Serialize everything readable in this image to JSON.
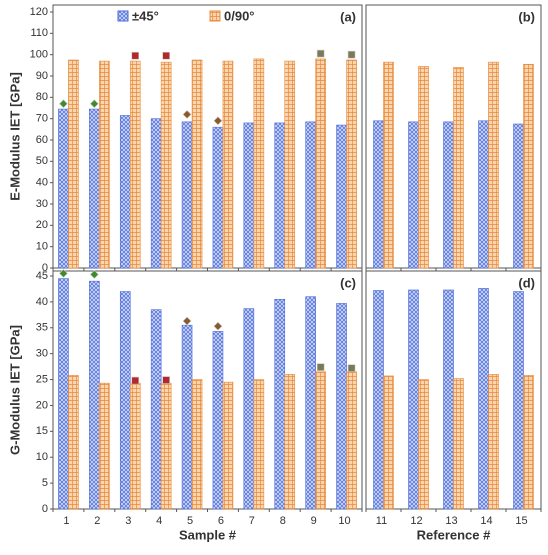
{
  "chart_data": [
    {
      "type": "bar",
      "title": "(a)",
      "ylabel": "E-Modulus IET [GPa]",
      "ylim": [
        0,
        120
      ],
      "yticks": [
        0,
        10,
        20,
        30,
        40,
        50,
        60,
        70,
        80,
        90,
        100,
        110,
        120
      ],
      "legend": "top",
      "series": [
        {
          "name": "±45°",
          "color": "#4a6ad8",
          "values": [
            74.5,
            74.5,
            71.5,
            70,
            68.5,
            66,
            68,
            68,
            68.5,
            67
          ]
        },
        {
          "name": "0/90°",
          "color": "#e8893a",
          "values": [
            97.5,
            97,
            97,
            96.5,
            97.5,
            97,
            98,
            97,
            98,
            97.5
          ]
        }
      ],
      "markers": [
        {
          "shape": "diamond",
          "values": [
            77,
            77,
            null,
            null,
            72,
            69,
            null,
            null,
            null,
            null
          ],
          "colors": [
            "#3f8a2e",
            "#3f8a2e",
            null,
            null,
            "#8a5a2a",
            "#8a5a2a",
            null,
            null,
            null,
            null
          ]
        },
        {
          "shape": "square",
          "values": [
            null,
            null,
            99.5,
            99.5,
            null,
            null,
            null,
            null,
            100.5,
            100
          ],
          "colors": [
            null,
            null,
            "#b02a2a",
            "#b02a2a",
            null,
            null,
            null,
            null,
            "#7a7a5a",
            "#7a7a5a"
          ]
        }
      ]
    },
    {
      "type": "bar",
      "title": "(b)",
      "ylim": [
        0,
        120
      ],
      "series": [
        {
          "color": "#4a6ad8",
          "values": [
            69,
            68.5,
            68.5,
            69,
            67.5
          ]
        },
        {
          "color": "#e8893a",
          "values": [
            96.5,
            94.5,
            94,
            96.5,
            95.5
          ]
        }
      ]
    },
    {
      "type": "bar",
      "title": "(c)",
      "ylabel": "G-Modulus IET [GPa]",
      "xlabel": "Sample #",
      "categories": [
        1,
        2,
        3,
        4,
        5,
        6,
        7,
        8,
        9,
        10
      ],
      "ylim": [
        0,
        45
      ],
      "yticks": [
        0,
        5,
        10,
        15,
        20,
        25,
        30,
        35,
        40,
        45
      ],
      "series": [
        {
          "color": "#4a6ad8",
          "values": [
            44.5,
            44,
            42,
            38.5,
            35.5,
            34.3,
            38.7,
            40.5,
            41,
            39.7
          ]
        },
        {
          "color": "#e8893a",
          "values": [
            25.8,
            24.3,
            24.3,
            24.3,
            25,
            24.5,
            25,
            26,
            26.5,
            26.5
          ]
        }
      ],
      "markers": [
        {
          "shape": "diamond",
          "values": [
            45.5,
            45.3,
            null,
            null,
            36.3,
            35.3,
            null,
            null,
            null,
            null
          ],
          "colors": [
            "#3f8a2e",
            "#3f8a2e",
            null,
            null,
            "#8a5a2a",
            "#8a5a2a",
            null,
            null,
            null,
            null
          ]
        },
        {
          "shape": "square",
          "values": [
            null,
            null,
            24.8,
            24.9,
            null,
            null,
            null,
            null,
            27.4,
            27.2
          ],
          "colors": [
            null,
            null,
            "#b02a2a",
            "#b02a2a",
            null,
            null,
            null,
            null,
            "#7a7a5a",
            "#7a7a5a"
          ]
        }
      ]
    },
    {
      "type": "bar",
      "title": "(d)",
      "xlabel": "Reference #",
      "categories": [
        11,
        12,
        13,
        14,
        15
      ],
      "ylim": [
        0,
        45
      ],
      "series": [
        {
          "color": "#4a6ad8",
          "values": [
            42.2,
            42.3,
            42.3,
            42.6,
            42
          ]
        },
        {
          "color": "#e8893a",
          "values": [
            25.7,
            25,
            25.2,
            26,
            25.8
          ]
        }
      ]
    }
  ]
}
